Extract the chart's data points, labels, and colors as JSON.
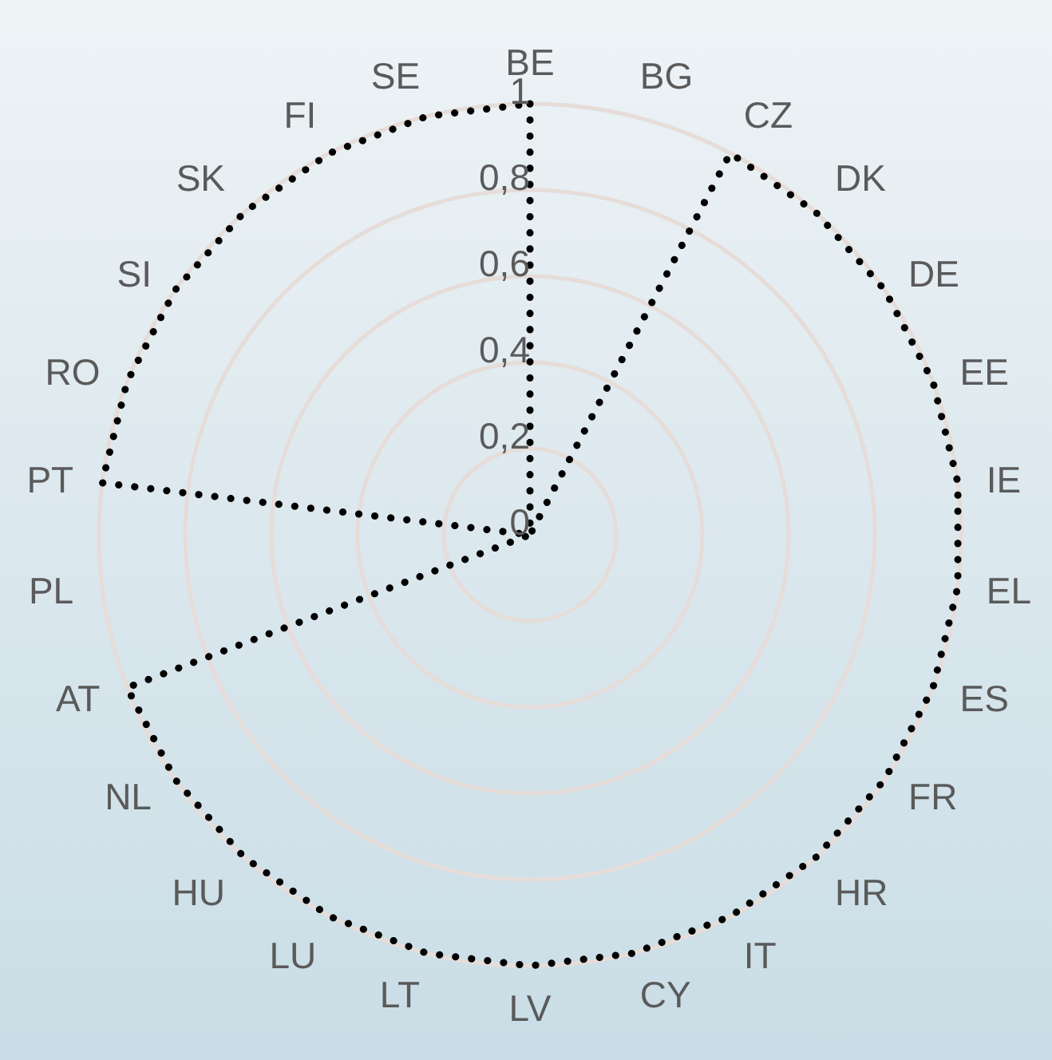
{
  "chart_data": {
    "type": "radar",
    "categories": [
      "BE",
      "BG",
      "CZ",
      "DK",
      "DE",
      "EE",
      "IE",
      "EL",
      "ES",
      "FR",
      "HR",
      "IT",
      "CY",
      "LV",
      "LT",
      "LU",
      "HU",
      "NL",
      "AT",
      "PL",
      "PT",
      "RO",
      "SI",
      "SK",
      "FI",
      "SE"
    ],
    "series": [
      {
        "color": "#000000",
        "values": [
          1,
          0,
          1,
          1,
          1,
          1,
          1,
          1,
          1,
          1,
          1,
          1,
          1,
          1,
          1,
          1,
          1,
          1,
          1,
          0,
          1,
          1,
          1,
          1,
          1,
          1
        ]
      }
    ],
    "ylim": [
      0,
      1
    ],
    "yticks": [
      {
        "value": 0,
        "label": "0"
      },
      {
        "value": 0.2,
        "label": "0,2"
      },
      {
        "value": 0.4,
        "label": "0,4"
      },
      {
        "value": 0.6,
        "label": "0,6"
      },
      {
        "value": 0.8,
        "label": "0,8"
      },
      {
        "value": 1,
        "label": "1"
      }
    ],
    "grid": true,
    "legend": false,
    "marker": "none",
    "line_style": "dotted"
  }
}
